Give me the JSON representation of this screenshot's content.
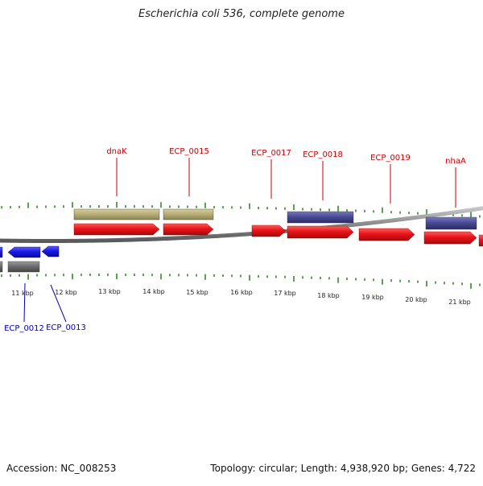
{
  "title": "Escherichia coli 536, complete genome",
  "footer": {
    "accession": "Accession: NC_008253",
    "summary": "Topology: circular; Length: 4,938,920 bp; Genes: 4,722"
  },
  "colors": {
    "forward_cds": "#e8141a",
    "reverse_cds": "#1a1ae6",
    "gene_tan": "#b8af78",
    "gene_purple": "#4a4a96",
    "pseudo_gray": "#6e6e6e",
    "tick": "#2e8b24",
    "label_red": "#cc0000",
    "label_blue": "#0000bb",
    "backbone": "#8a8a8a"
  },
  "ruler": {
    "unit_labels": [
      "11 kbp",
      "12 kbp",
      "13 kbp",
      "14 kbp",
      "15 kbp",
      "16 kbp",
      "17 kbp",
      "18 kbp",
      "19 kbp",
      "20 kbp",
      "21 kbp"
    ]
  },
  "gene_labels_top": [
    "dnaK",
    "ECP_0015",
    "ECP_0017",
    "ECP_0018",
    "ECP_0019",
    "nhaA"
  ],
  "gene_labels_bottom": [
    "ECP_0012",
    "ECP_0013"
  ]
}
